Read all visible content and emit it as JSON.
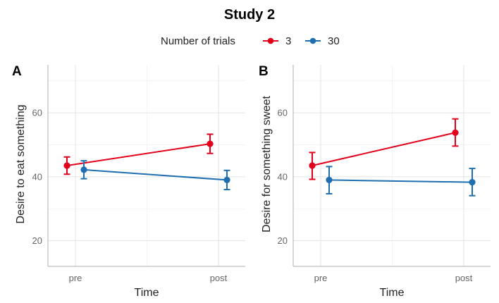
{
  "chart_data": {
    "title": "Study 2",
    "legend": {
      "title": "Number of trials",
      "placement": "top",
      "entries": [
        {
          "label": "3",
          "color": "#e3001b"
        },
        {
          "label": "30",
          "color": "#1f6eb0"
        }
      ]
    },
    "panels": [
      {
        "tag": "A",
        "type": "line",
        "categories": [
          "pre",
          "post"
        ],
        "xlabel": "Time",
        "ylabel": "Desire to eat something",
        "ylim": [
          12,
          75
        ],
        "yticks": [
          20,
          40,
          60
        ],
        "grid": true,
        "series": [
          {
            "name": "3",
            "color": "#e3001b",
            "values": [
              43.5,
              50.3
            ],
            "lower": [
              40.8,
              47.3
            ],
            "upper": [
              46.2,
              53.3
            ]
          },
          {
            "name": "30",
            "color": "#1f6eb0",
            "values": [
              42.2,
              39.0
            ],
            "lower": [
              39.4,
              36.0
            ],
            "upper": [
              45.0,
              42.0
            ]
          }
        ]
      },
      {
        "tag": "B",
        "type": "line",
        "categories": [
          "pre",
          "post"
        ],
        "xlabel": "Time",
        "ylabel": "Desire for something sweet",
        "ylim": [
          12,
          75
        ],
        "yticks": [
          20,
          40,
          60
        ],
        "grid": true,
        "series": [
          {
            "name": "3",
            "color": "#e3001b",
            "values": [
              43.5,
              53.8
            ],
            "lower": [
              39.2,
              49.6
            ],
            "upper": [
              47.6,
              58.1
            ]
          },
          {
            "name": "30",
            "color": "#1f6eb0",
            "values": [
              39.0,
              38.3
            ],
            "lower": [
              34.7,
              34.1
            ],
            "upper": [
              43.2,
              42.6
            ]
          }
        ]
      }
    ]
  }
}
